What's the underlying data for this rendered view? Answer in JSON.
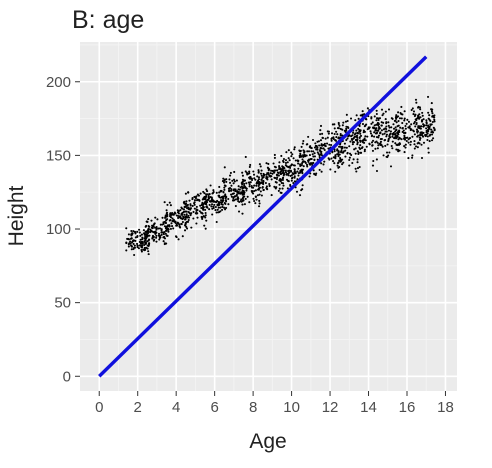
{
  "chart_data": {
    "type": "scatter",
    "title": "B: age",
    "xlabel": "Age",
    "ylabel": "Height",
    "xlim": [
      -1,
      18.6
    ],
    "ylim": [
      -10,
      227
    ],
    "x_ticks": [
      0,
      2,
      4,
      6,
      8,
      10,
      12,
      14,
      16,
      18
    ],
    "x_tick_labels": [
      "0",
      "2",
      "4",
      "6",
      "8",
      "10",
      "12",
      "14",
      "16",
      "18"
    ],
    "y_ticks": [
      0,
      50,
      100,
      150,
      200
    ],
    "y_tick_labels": [
      "0",
      "50",
      "100",
      "150",
      "200"
    ],
    "grid": true,
    "legend": "none",
    "colors": {
      "panel_background": "#ebebeb",
      "grid_major": "#ffffff",
      "grid_minor": "#f4f4f4",
      "points": "#000000",
      "line": "#1010dd",
      "text": "#222222",
      "tick_text": "#4d4d4d"
    },
    "point_clusters": [
      {
        "age": 2,
        "height_mean": 92,
        "height_sd": 4,
        "spread": 0.6
      },
      {
        "age": 3,
        "height_mean": 99,
        "height_sd": 4,
        "spread": 0.6
      },
      {
        "age": 4,
        "height_mean": 106,
        "height_sd": 4.5,
        "spread": 0.6
      },
      {
        "age": 5,
        "height_mean": 113,
        "height_sd": 5,
        "spread": 0.6
      },
      {
        "age": 6,
        "height_mean": 119,
        "height_sd": 5,
        "spread": 0.6
      },
      {
        "age": 7,
        "height_mean": 125,
        "height_sd": 5.5,
        "spread": 0.6
      },
      {
        "age": 8,
        "height_mean": 130,
        "height_sd": 6,
        "spread": 0.6
      },
      {
        "age": 9,
        "height_mean": 135,
        "height_sd": 6,
        "spread": 0.6
      },
      {
        "age": 10,
        "height_mean": 140,
        "height_sd": 6.5,
        "spread": 0.6
      },
      {
        "age": 11,
        "height_mean": 147,
        "height_sd": 7,
        "spread": 0.6
      },
      {
        "age": 12,
        "height_mean": 154,
        "height_sd": 7.5,
        "spread": 0.6
      },
      {
        "age": 13,
        "height_mean": 160,
        "height_sd": 8,
        "spread": 0.6
      },
      {
        "age": 14,
        "height_mean": 164,
        "height_sd": 8,
        "spread": 0.6
      },
      {
        "age": 15,
        "height_mean": 166,
        "height_sd": 8,
        "spread": 0.6
      },
      {
        "age": 16,
        "height_mean": 167,
        "height_sd": 8,
        "spread": 0.6
      },
      {
        "age": 17,
        "height_mean": 168,
        "height_sd": 8,
        "spread": 0.45
      }
    ],
    "points_per_cluster": 110,
    "series": [
      {
        "type": "line",
        "x": [
          0,
          17
        ],
        "y": [
          0,
          217
        ]
      }
    ]
  }
}
